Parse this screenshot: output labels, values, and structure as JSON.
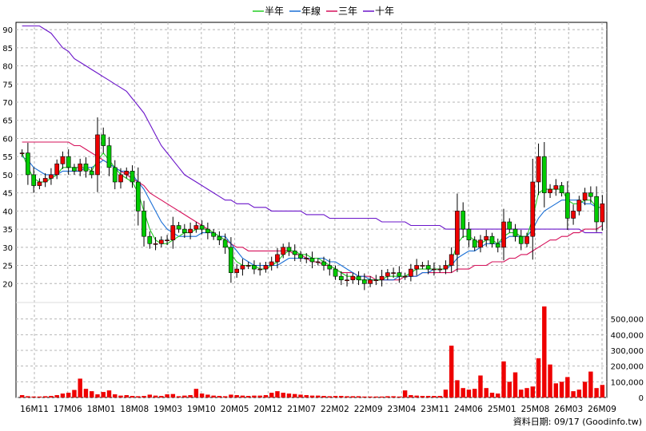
{
  "chart_data": {
    "type": "candlestick",
    "legend": [
      {
        "label": "半年",
        "color": "#22cc22"
      },
      {
        "label": "年線",
        "color": "#1a6fd6"
      },
      {
        "label": "三年",
        "color": "#d6105a"
      },
      {
        "label": "十年",
        "color": "#6a14c9"
      }
    ],
    "price_axis": {
      "min": 15,
      "max": 92,
      "ticks": [
        20,
        25,
        30,
        35,
        40,
        45,
        50,
        55,
        60,
        65,
        70,
        75,
        80,
        85,
        90
      ]
    },
    "volume_axis": {
      "min": 0,
      "max": 600000,
      "ticks": [
        0,
        100000,
        200000,
        300000,
        400000,
        500000
      ],
      "tick_labels": [
        "0",
        "100,000",
        "200,000",
        "300,000",
        "400,000",
        "500,000"
      ]
    },
    "x_labels": [
      "16M11",
      "17M06",
      "18M01",
      "18M08",
      "19M03",
      "19M10",
      "20M05",
      "20M12",
      "21M07",
      "22M02",
      "22M09",
      "23M04",
      "23M11",
      "24M06",
      "25M01",
      "25M08",
      "26M03",
      "26M09"
    ],
    "credit": "資料日期: 09/17  (Goodinfo.tw)",
    "close": [
      56,
      50,
      47,
      48,
      49,
      50,
      53,
      55,
      52,
      51,
      53,
      51,
      50,
      61,
      58,
      52,
      48,
      50,
      51,
      48,
      40,
      33,
      31,
      31,
      32,
      32,
      36,
      35,
      34,
      35,
      36,
      35,
      34,
      33,
      32,
      30,
      23,
      24,
      25,
      25,
      24,
      24,
      25,
      26,
      28,
      30,
      29,
      28,
      27,
      27,
      26,
      26,
      25,
      24,
      22,
      21,
      21,
      22,
      21,
      20,
      21,
      21,
      22,
      23,
      23,
      22,
      22,
      24,
      25,
      25,
      24,
      24,
      24,
      25,
      28,
      40,
      35,
      32,
      30,
      32,
      33,
      31,
      30,
      37,
      35,
      33,
      31,
      33,
      48,
      55,
      45,
      46,
      47,
      45,
      38,
      40,
      43,
      45,
      44,
      37,
      42
    ],
    "volume": [
      15000,
      8000,
      6000,
      6000,
      8000,
      10000,
      15000,
      25000,
      30000,
      48000,
      120000,
      55000,
      40000,
      20000,
      35000,
      45000,
      20000,
      12000,
      15000,
      10000,
      8000,
      10000,
      18000,
      12000,
      10000,
      20000,
      22000,
      8000,
      12000,
      15000,
      55000,
      25000,
      18000,
      12000,
      10000,
      8000,
      18000,
      15000,
      12000,
      10000,
      12000,
      12000,
      15000,
      30000,
      40000,
      30000,
      25000,
      22000,
      18000,
      15000,
      12000,
      12000,
      10000,
      8000,
      10000,
      10000,
      8000,
      8000,
      8000,
      6000,
      6000,
      6000,
      6000,
      8000,
      8000,
      6000,
      45000,
      15000,
      12000,
      10000,
      10000,
      10000,
      10000,
      50000,
      330000,
      110000,
      60000,
      50000,
      55000,
      140000,
      60000,
      30000,
      25000,
      230000,
      100000,
      160000,
      50000,
      60000,
      70000,
      250000,
      580000,
      210000,
      90000,
      100000,
      130000,
      40000,
      50000,
      100000,
      165000,
      60000,
      80000
    ],
    "ma_half": [
      56,
      52,
      49,
      48,
      48,
      49,
      50,
      52,
      52,
      52,
      52,
      52,
      51,
      54,
      56,
      54,
      52,
      50,
      49,
      48,
      45,
      40,
      35,
      32,
      31,
      31,
      32,
      33,
      34,
      34,
      35,
      35,
      35,
      34,
      33,
      32,
      28,
      26,
      25,
      25,
      25,
      24,
      24,
      25,
      26,
      28,
      29,
      29,
      28,
      28,
      27,
      27,
      26,
      25,
      24,
      23,
      22,
      22,
      21,
      21,
      21,
      21,
      21,
      22,
      22,
      22,
      22,
      23,
      24,
      24,
      24,
      24,
      24,
      24,
      26,
      31,
      33,
      33,
      32,
      31,
      32,
      32,
      31,
      33,
      34,
      34,
      33,
      33,
      38,
      45,
      46,
      46,
      46,
      46,
      43,
      42,
      42,
      43,
      43,
      41,
      41
    ],
    "ma_year": [
      55,
      54,
      52,
      51,
      50,
      50,
      50,
      51,
      51,
      51,
      51,
      52,
      52,
      53,
      54,
      53,
      52,
      51,
      51,
      50,
      48,
      46,
      43,
      40,
      37,
      35,
      34,
      33,
      33,
      33,
      33,
      34,
      34,
      34,
      33,
      33,
      31,
      29,
      27,
      26,
      25,
      25,
      25,
      25,
      25,
      26,
      27,
      27,
      27,
      27,
      27,
      27,
      27,
      26,
      26,
      25,
      24,
      23,
      22,
      22,
      21,
      21,
      21,
      21,
      21,
      22,
      22,
      22,
      22,
      23,
      23,
      24,
      24,
      24,
      25,
      27,
      28,
      29,
      29,
      30,
      31,
      31,
      31,
      32,
      33,
      33,
      33,
      33,
      35,
      38,
      40,
      41,
      42,
      43,
      43,
      43,
      43,
      42,
      42,
      41,
      41
    ],
    "ma_3y": [
      59,
      59,
      59,
      59,
      59,
      59,
      59,
      59,
      59,
      58,
      58,
      57,
      56,
      55,
      54,
      53,
      52,
      51,
      50,
      49,
      48,
      47,
      45,
      44,
      43,
      42,
      41,
      40,
      39,
      38,
      37,
      36,
      35,
      34,
      33,
      32,
      31,
      30,
      30,
      29,
      29,
      29,
      29,
      29,
      29,
      29,
      29,
      28,
      28,
      27,
      26,
      26,
      25,
      25,
      24,
      23,
      23,
      23,
      22,
      22,
      22,
      21,
      21,
      21,
      21,
      21,
      22,
      22,
      22,
      23,
      23,
      23,
      23,
      23,
      23,
      24,
      24,
      24,
      25,
      25,
      25,
      26,
      26,
      26,
      27,
      27,
      28,
      28,
      29,
      30,
      31,
      32,
      32,
      33,
      33,
      34,
      34,
      35,
      35,
      35,
      36
    ],
    "ma_10y": [
      91,
      91,
      91,
      91,
      90,
      89,
      87,
      85,
      84,
      82,
      81,
      80,
      79,
      78,
      77,
      76,
      75,
      74,
      73,
      71,
      69,
      67,
      64,
      61,
      58,
      56,
      54,
      52,
      50,
      49,
      48,
      47,
      46,
      45,
      44,
      43,
      43,
      42,
      42,
      42,
      41,
      41,
      41,
      40,
      40,
      40,
      40,
      40,
      40,
      39,
      39,
      39,
      39,
      38,
      38,
      38,
      38,
      38,
      38,
      38,
      38,
      38,
      37,
      37,
      37,
      37,
      37,
      36,
      36,
      36,
      36,
      36,
      36,
      35,
      35,
      35,
      35,
      35,
      35,
      35,
      35,
      35,
      35,
      35,
      35,
      35,
      35,
      35,
      35,
      35,
      35,
      35,
      35,
      35,
      35,
      35,
      35,
      34,
      34,
      34,
      34
    ]
  }
}
